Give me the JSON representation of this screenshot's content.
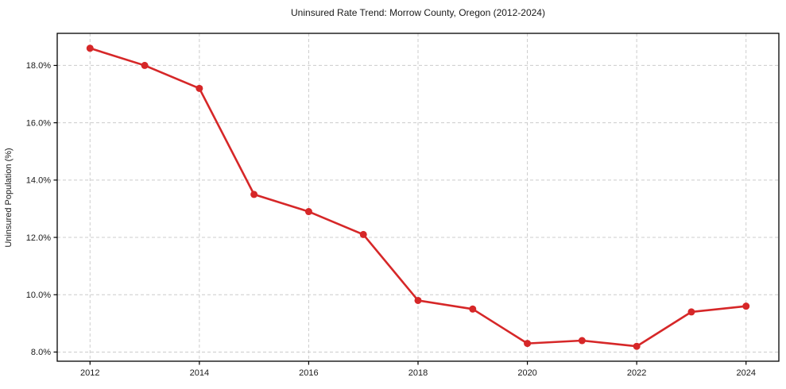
{
  "chart_data": {
    "type": "line",
    "title": "Uninsured Rate Trend: Morrow County, Oregon (2012-2024)",
    "xlabel": "",
    "ylabel": "Uninsured Population (%)",
    "x": [
      2012,
      2013,
      2014,
      2015,
      2016,
      2017,
      2018,
      2019,
      2020,
      2021,
      2022,
      2023,
      2024
    ],
    "series": [
      {
        "name": "Uninsured Rate",
        "values": [
          18.6,
          18.0,
          17.2,
          13.5,
          12.9,
          12.1,
          9.8,
          9.5,
          8.3,
          8.4,
          8.2,
          9.4,
          9.6
        ]
      }
    ],
    "xlim": [
      2011.4,
      2024.6
    ],
    "ylim": [
      7.68,
      19.12
    ],
    "x_ticks": [
      2012,
      2014,
      2016,
      2018,
      2020,
      2022,
      2024
    ],
    "x_tick_labels": [
      "2012",
      "2014",
      "2016",
      "2018",
      "2020",
      "2022",
      "2024"
    ],
    "y_ticks": [
      8,
      10,
      12,
      14,
      16,
      18
    ],
    "y_tick_labels": [
      "8.0%",
      "10.0%",
      "12.0%",
      "14.0%",
      "16.0%",
      "18.0%"
    ],
    "grid": true,
    "grid_style": "dashed",
    "legend": "none",
    "colors": {
      "line": "#d62728",
      "marker": "#d62728",
      "grid": "#cccccc",
      "frame": "#000000",
      "text": "#1a1a1a",
      "background": "#ffffff"
    }
  }
}
